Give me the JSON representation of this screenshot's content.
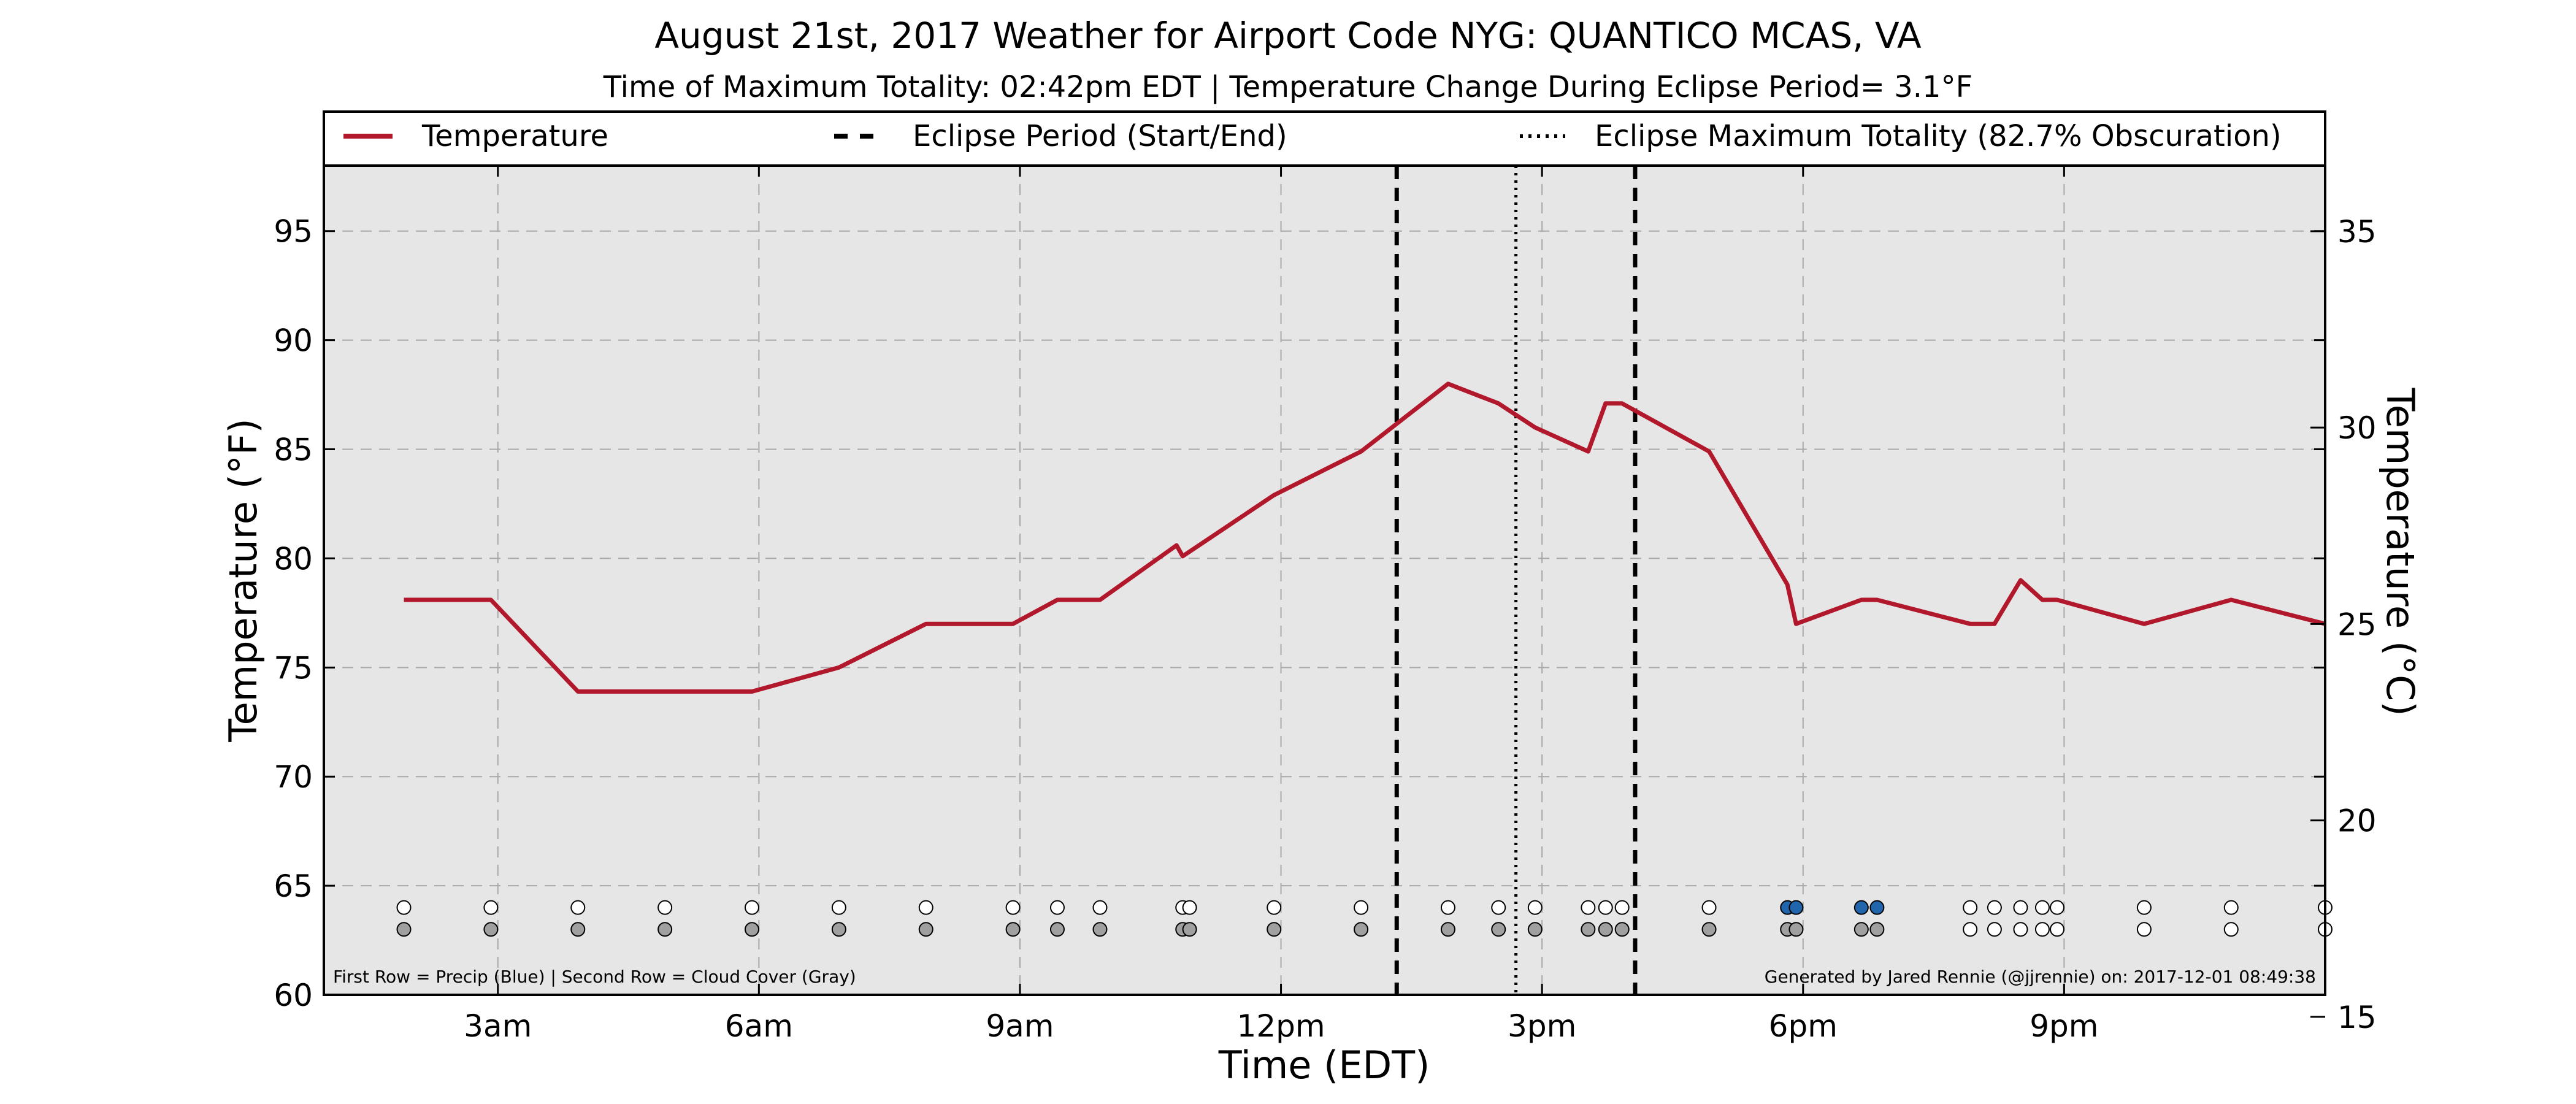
{
  "chart_data": {
    "type": "line",
    "title": "August 21st, 2017 Weather for Airport Code NYG: QUANTICO MCAS, VA",
    "subtitle": "Time of Maximum Totality: 02:42pm EDT | Temperature Change During Eclipse Period= 3.1°F",
    "xlabel": "Time (EDT)",
    "ylabel": "Temperature (°F)",
    "y2label": "Temperature (°C)",
    "x_unit": "hours after midnight EDT",
    "xlim": [
      1,
      24
    ],
    "ylim": [
      60,
      98
    ],
    "y2lim": [
      15.56,
      36.67
    ],
    "x_ticks": [
      {
        "v": 3,
        "label": "3am"
      },
      {
        "v": 6,
        "label": "6am"
      },
      {
        "v": 9,
        "label": "9am"
      },
      {
        "v": 12,
        "label": "12pm"
      },
      {
        "v": 15,
        "label": "3pm"
      },
      {
        "v": 18,
        "label": "6pm"
      },
      {
        "v": 21,
        "label": "9pm"
      }
    ],
    "y_ticks": [
      60,
      65,
      70,
      75,
      80,
      85,
      90,
      95
    ],
    "y2_ticks": [
      15,
      20,
      25,
      30,
      35
    ],
    "grid": true,
    "legend_position": "top, spanning the plot",
    "legend": {
      "temperature": "Temperature",
      "eclipse_period": "Eclipse Period (Start/End)",
      "max_totality": "Eclipse Maximum Totality (82.7% Obscuration)"
    },
    "eclipse": {
      "start": 13.33,
      "end": 16.07,
      "max": 14.7
    },
    "series": [
      {
        "name": "Temperature",
        "color": "#b2182b",
        "points": [
          [
            1.92,
            78.1
          ],
          [
            2.92,
            78.1
          ],
          [
            3.92,
            73.9
          ],
          [
            4.92,
            73.9
          ],
          [
            5.92,
            73.9
          ],
          [
            6.92,
            75.0
          ],
          [
            7.92,
            77.0
          ],
          [
            8.92,
            77.0
          ],
          [
            9.43,
            78.1
          ],
          [
            9.92,
            78.1
          ],
          [
            10.8,
            80.6
          ],
          [
            10.87,
            80.1
          ],
          [
            11.92,
            82.9
          ],
          [
            12.92,
            84.9
          ],
          [
            13.92,
            88.0
          ],
          [
            14.5,
            87.1
          ],
          [
            14.92,
            86.0
          ],
          [
            15.53,
            84.9
          ],
          [
            15.73,
            87.1
          ],
          [
            15.92,
            87.1
          ],
          [
            16.92,
            84.9
          ],
          [
            17.82,
            78.8
          ],
          [
            17.92,
            77.0
          ],
          [
            18.67,
            78.1
          ],
          [
            18.85,
            78.1
          ],
          [
            19.92,
            77.0
          ],
          [
            20.2,
            77.0
          ],
          [
            20.5,
            79.0
          ],
          [
            20.75,
            78.1
          ],
          [
            20.92,
            78.1
          ],
          [
            21.92,
            77.0
          ],
          [
            22.92,
            78.1
          ],
          [
            24.0,
            77.0
          ]
        ]
      }
    ],
    "marker_rows": {
      "precip_y": 64.0,
      "cloud_y": 63.0,
      "times": [
        1.92,
        2.92,
        3.92,
        4.92,
        5.92,
        6.92,
        7.92,
        8.92,
        9.43,
        9.92,
        10.87,
        10.95,
        11.92,
        12.92,
        13.92,
        14.5,
        14.92,
        15.53,
        15.73,
        15.92,
        16.92,
        17.82,
        17.92,
        18.67,
        18.85,
        19.92,
        20.2,
        20.5,
        20.75,
        20.92,
        21.92,
        22.92,
        24.0
      ],
      "precip": [
        "none",
        "none",
        "none",
        "none",
        "none",
        "none",
        "none",
        "none",
        "none",
        "none",
        "none",
        "none",
        "none",
        "none",
        "none",
        "none",
        "none",
        "none",
        "none",
        "none",
        "none",
        "rain",
        "rain",
        "rain",
        "rain",
        "none",
        "none",
        "none",
        "none",
        "none",
        "none",
        "none",
        "none"
      ],
      "cloud": [
        "cloud",
        "cloud",
        "cloud",
        "cloud",
        "cloud",
        "cloud",
        "cloud",
        "cloud",
        "cloud",
        "cloud",
        "cloud",
        "cloud",
        "cloud",
        "cloud",
        "cloud",
        "cloud",
        "cloud",
        "cloud",
        "cloud",
        "cloud",
        "cloud",
        "cloud",
        "cloud",
        "cloud",
        "cloud",
        "clear",
        "clear",
        "clear",
        "clear",
        "clear",
        "clear",
        "clear",
        "clear"
      ]
    },
    "colors": {
      "line": "#b2182b",
      "precip_marker": "#2166ac",
      "cloud_marker": "#a0a0a0",
      "empty_marker": "#ffffff",
      "plot_background": "#e6e6e6",
      "grid": "#a8a8a8"
    }
  },
  "footnote_left": "First Row = Precip (Blue) | Second Row = Cloud Cover (Gray)",
  "footnote_right": "Generated by Jared Rennie (@jjrennie) on: 2017-12-01 08:49:38"
}
